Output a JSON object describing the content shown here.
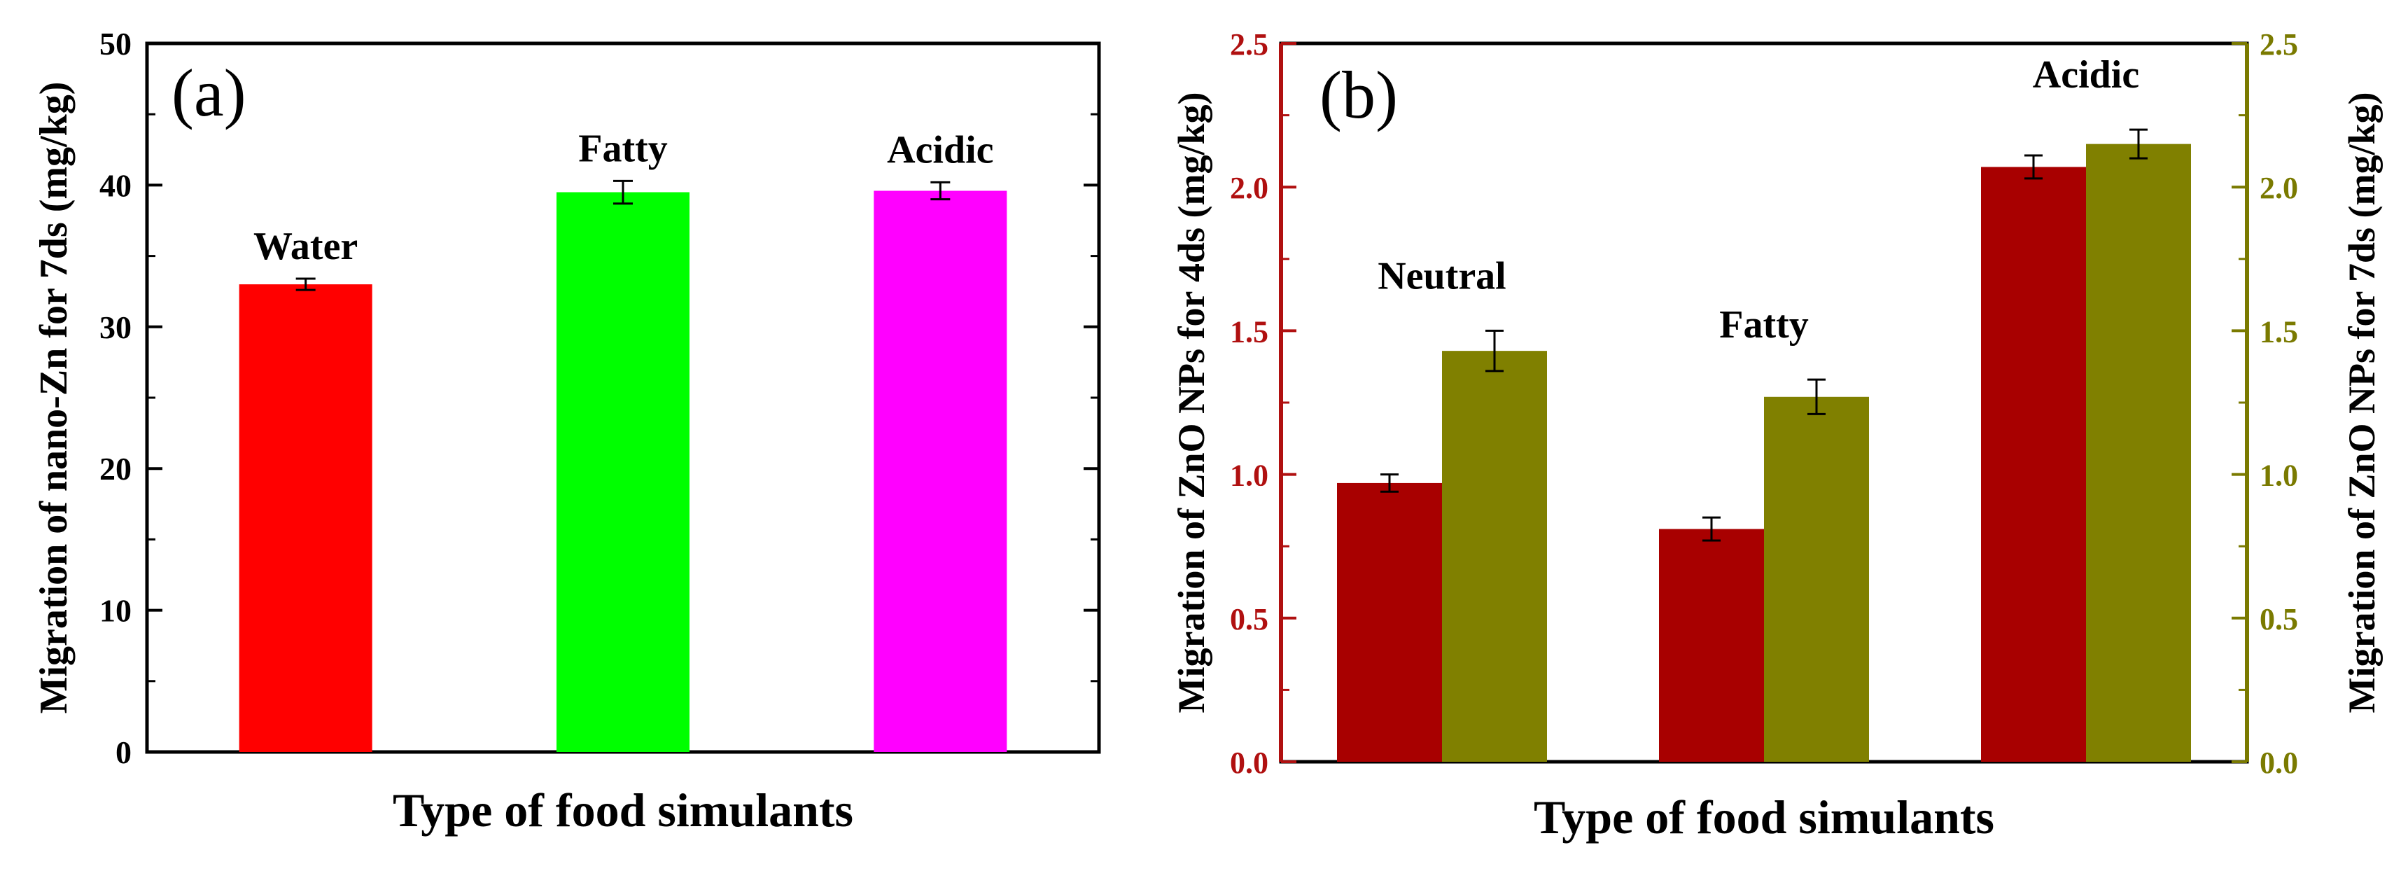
{
  "chart_data": [
    {
      "type": "bar",
      "panel_label": "(a)",
      "xlabel": "Type of food simulants",
      "ylabel": "Migration of nano-Zn for 7ds (mg/kg)",
      "ylim": [
        0,
        50
      ],
      "yticks": [
        "0",
        "10",
        "20",
        "30",
        "40",
        "50"
      ],
      "bars": [
        {
          "label": "Water",
          "value": 33.0,
          "error": 0.4,
          "color": "#ff0000"
        },
        {
          "label": "Fatty",
          "value": 39.5,
          "error": 0.8,
          "color": "#00ff00"
        },
        {
          "label": "Acidic",
          "value": 39.6,
          "error": 0.6,
          "color": "#ff00ff"
        }
      ]
    },
    {
      "type": "bar",
      "panel_label": "(b)",
      "xlabel": "Type of food simulants",
      "ylabel": "Migration of ZnO NPs for 4ds (mg/kg)",
      "ylabel_right": "Migration of ZnO NPs for 7ds (mg/kg)",
      "ylim": [
        0,
        2.5
      ],
      "ylim_right": [
        0,
        2.5
      ],
      "yticks": [
        "0.0",
        "0.5",
        "1.0",
        "1.5",
        "2.0",
        "2.5"
      ],
      "left_axis_color": "#b01010",
      "right_axis_color": "#7a7a00",
      "categories": [
        "Neutral",
        "Fatty",
        "Acidic"
      ],
      "series": [
        {
          "values": [
            0.97,
            0.81,
            2.07
          ],
          "errors": [
            0.03,
            0.04,
            0.04
          ],
          "color": "#a80000"
        },
        {
          "values": [
            1.43,
            1.27,
            2.15
          ],
          "errors": [
            0.07,
            0.06,
            0.05
          ],
          "color": "#808000"
        }
      ]
    }
  ]
}
